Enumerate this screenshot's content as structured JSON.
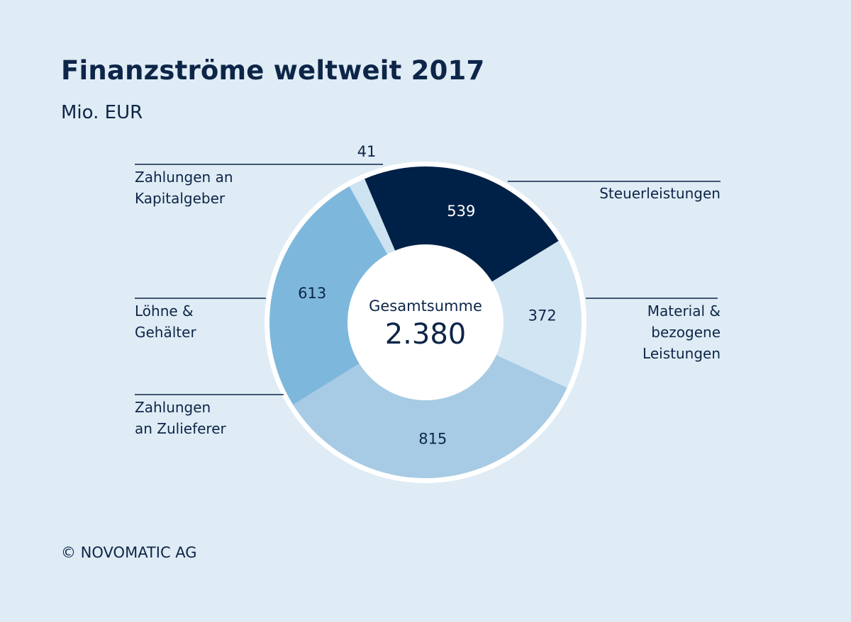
{
  "header": {
    "title": "Finanzströme weltweit 2017",
    "unit": "Mio. EUR"
  },
  "footer": {
    "copyright": "© NOVOMATIC AG"
  },
  "chart_data": {
    "type": "pie",
    "variant": "donut",
    "title": "Finanzströme weltweit 2017",
    "unit": "Mio. EUR",
    "center_caption": "Gesamtsumme",
    "center_total": "2.380",
    "total": 2380,
    "slices": [
      {
        "key": "steuer",
        "label_lines": [
          "Steuerleistungen"
        ],
        "value": 539,
        "value_label": "539",
        "color": "#002147",
        "text_color": "#ffffff",
        "label_side": "right"
      },
      {
        "key": "material",
        "label_lines": [
          "Material &",
          "bezogene",
          "Leistungen"
        ],
        "value": 372,
        "value_label": "372",
        "color": "#d2e5f3",
        "text_color": "#0d2548",
        "label_side": "right"
      },
      {
        "key": "zulieferer",
        "label_lines": [
          "Zahlungen",
          "an Zulieferer"
        ],
        "value": 815,
        "value_label": "815",
        "color": "#a7cbe4",
        "text_color": "#0d2548",
        "label_side": "left"
      },
      {
        "key": "loehne",
        "label_lines": [
          "Löhne &",
          "Gehälter"
        ],
        "value": 613,
        "value_label": "613",
        "color": "#7db8dc",
        "text_color": "#0d2548",
        "label_side": "left"
      },
      {
        "key": "kapital",
        "label_lines": [
          "Zahlungen an",
          "Kapitalgeber"
        ],
        "value": 41,
        "value_label": "41",
        "color": "#cde3f2",
        "text_color": "#0d2548",
        "label_side": "left"
      }
    ]
  }
}
